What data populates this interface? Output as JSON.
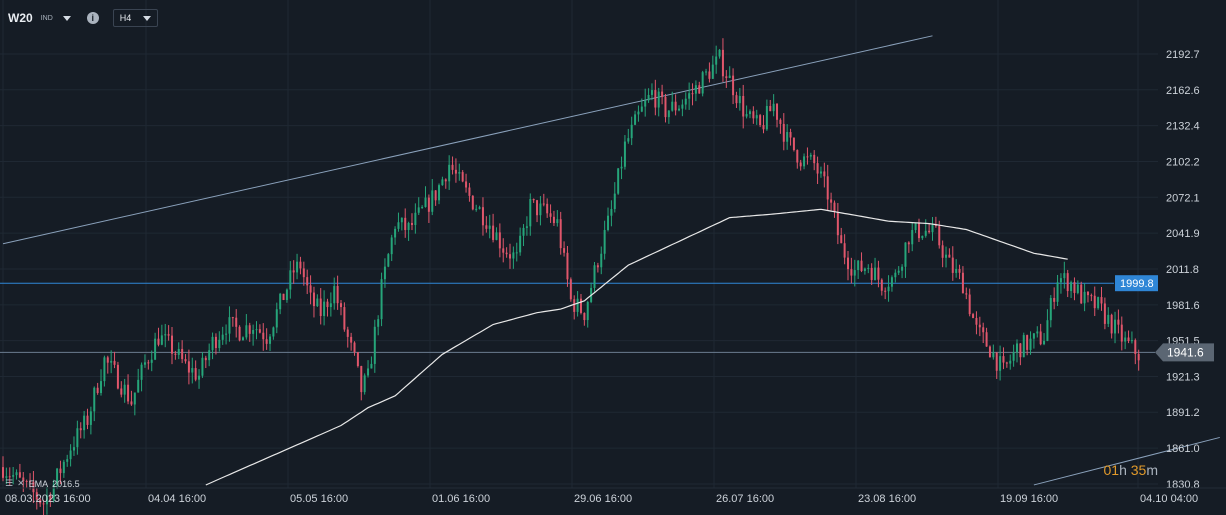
{
  "toolbar": {
    "symbol": "W20",
    "symbol_type": "IND",
    "timeframe": "H4"
  },
  "indicator": {
    "label": "EMA",
    "value": "2016.5"
  },
  "timer": {
    "hours": "01",
    "h_unit": "h",
    "minutes": "35",
    "m_unit": "m"
  },
  "chart_data": {
    "type": "candlestick",
    "y_ticks": [
      "2192.7",
      "2162.6",
      "2132.4",
      "2102.2",
      "2072.1",
      "2041.9",
      "2011.8",
      "1981.6",
      "1951.5",
      "1921.3",
      "1891.2",
      "1861.0",
      "1830.8"
    ],
    "x_ticks": [
      "08.03.2023  16:00",
      "04.04  16:00",
      "05.05  16:00",
      "01.06  16:00",
      "29.06  16:00",
      "26.07  16:00",
      "23.08  16:00",
      "19.09  16:00",
      "04.10  04:00"
    ],
    "price_labels": {
      "horizontal_level": "1999.8",
      "last_price": "1941.6"
    },
    "levels": {
      "horizontal_level": 1999.8,
      "last_price": 1941.6
    },
    "price_path": [
      [
        0,
        1845
      ],
      [
        4,
        1835
      ],
      [
        8,
        1825
      ],
      [
        12,
        1815
      ],
      [
        15,
        1830
      ],
      [
        20,
        1862
      ],
      [
        25,
        1885
      ],
      [
        30,
        1935
      ],
      [
        34,
        1920
      ],
      [
        38,
        1900
      ],
      [
        42,
        1932
      ],
      [
        46,
        1955
      ],
      [
        50,
        1945
      ],
      [
        54,
        1930
      ],
      [
        58,
        1922
      ],
      [
        62,
        1950
      ],
      [
        66,
        1965
      ],
      [
        70,
        1960
      ],
      [
        74,
        1965
      ],
      [
        78,
        1955
      ],
      [
        82,
        1982
      ],
      [
        86,
        2010
      ],
      [
        88,
        2015
      ],
      [
        91,
        1985
      ],
      [
        94,
        1975
      ],
      [
        98,
        1995
      ],
      [
        101,
        1962
      ],
      [
        104,
        1935
      ],
      [
        106,
        1910
      ],
      [
        108,
        1920
      ],
      [
        112,
        1995
      ],
      [
        116,
        2050
      ],
      [
        120,
        2045
      ],
      [
        124,
        2060
      ],
      [
        128,
        2075
      ],
      [
        132,
        2100
      ],
      [
        136,
        2080
      ],
      [
        140,
        2065
      ],
      [
        144,
        2050
      ],
      [
        148,
        2030
      ],
      [
        152,
        2020
      ],
      [
        156,
        2065
      ],
      [
        160,
        2060
      ],
      [
        164,
        2050
      ],
      [
        168,
        1985
      ],
      [
        172,
        1975
      ],
      [
        176,
        2020
      ],
      [
        180,
        2060
      ],
      [
        184,
        2115
      ],
      [
        188,
        2140
      ],
      [
        192,
        2160
      ],
      [
        196,
        2145
      ],
      [
        200,
        2150
      ],
      [
        204,
        2160
      ],
      [
        208,
        2175
      ],
      [
        212,
        2188
      ],
      [
        216,
        2165
      ],
      [
        220,
        2140
      ],
      [
        224,
        2130
      ],
      [
        228,
        2150
      ],
      [
        232,
        2120
      ],
      [
        236,
        2105
      ],
      [
        240,
        2100
      ],
      [
        244,
        2075
      ],
      [
        248,
        2030
      ],
      [
        252,
        2010
      ],
      [
        256,
        2015
      ],
      [
        260,
        2000
      ],
      [
        264,
        2005
      ],
      [
        268,
        2040
      ],
      [
        272,
        2045
      ],
      [
        276,
        2040
      ],
      [
        280,
        2015
      ],
      [
        284,
        2000
      ],
      [
        288,
        1960
      ],
      [
        292,
        1945
      ],
      [
        296,
        1925
      ],
      [
        300,
        1945
      ],
      [
        304,
        1950
      ],
      [
        308,
        1955
      ],
      [
        312,
        2005
      ],
      [
        316,
        2000
      ],
      [
        320,
        1985
      ],
      [
        324,
        1980
      ],
      [
        328,
        1965
      ],
      [
        332,
        1950
      ],
      [
        336,
        1940
      ]
    ],
    "ema_path": [
      [
        60,
        1830
      ],
      [
        100,
        1880
      ],
      [
        108,
        1895
      ],
      [
        116,
        1905
      ],
      [
        130,
        1940
      ],
      [
        145,
        1965
      ],
      [
        158,
        1975
      ],
      [
        165,
        1978
      ],
      [
        172,
        1985
      ],
      [
        185,
        2015
      ],
      [
        200,
        2035
      ],
      [
        215,
        2055
      ],
      [
        228,
        2058
      ],
      [
        242,
        2062
      ],
      [
        250,
        2058
      ],
      [
        262,
        2052
      ],
      [
        274,
        2050
      ],
      [
        285,
        2045
      ],
      [
        295,
        2035
      ],
      [
        305,
        2025
      ],
      [
        315,
        2020
      ]
    ],
    "trend_lines": [
      [
        [
          0,
          2033
        ],
        [
          275,
          2208
        ]
      ],
      [
        [
          305,
          1830
        ],
        [
          360,
          1870
        ]
      ]
    ],
    "colors": {
      "background": "#151c25",
      "up_candle": "#26a57a",
      "down_candle": "#e0566b",
      "ema": "#e8e8e8",
      "trend_line": "#8aa1bb",
      "horizontal_level": "#2f86d6",
      "last_price_line": "#6b7d90",
      "horizontal_label_bg": "#2f86d6",
      "last_price_label_bg": "#5b6673",
      "timer": "#e19a2b"
    }
  }
}
